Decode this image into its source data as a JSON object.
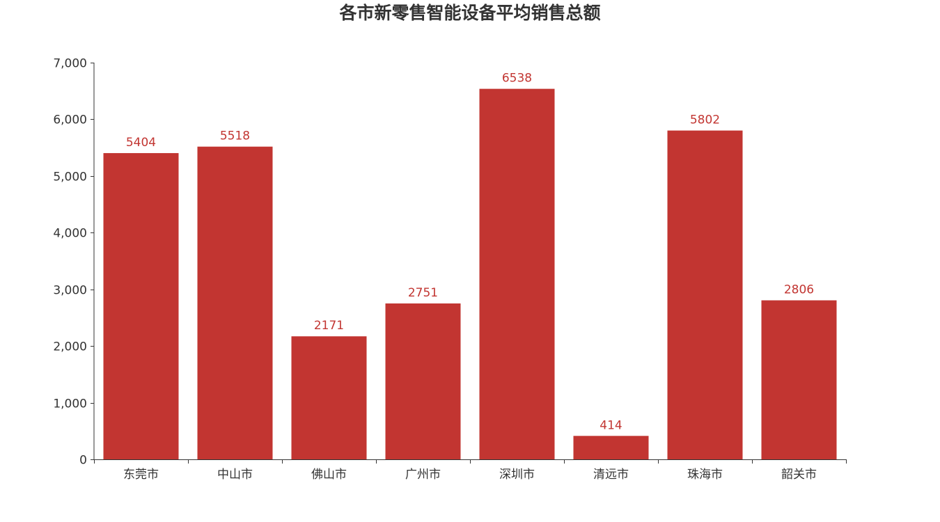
{
  "chart_data": {
    "type": "bar",
    "title": "各市新零售智能设备平均销售总额",
    "xlabel": "",
    "ylabel": "",
    "categories": [
      "东莞市",
      "中山市",
      "佛山市",
      "广州市",
      "深圳市",
      "清远市",
      "珠海市",
      "韶关市"
    ],
    "values": [
      5404,
      5518,
      2171,
      2751,
      6538,
      414,
      5802,
      2806
    ],
    "ylim": [
      0,
      7000
    ],
    "yticks": [
      0,
      1000,
      2000,
      3000,
      4000,
      5000,
      6000,
      7000
    ],
    "ytick_labels": [
      "0",
      "1,000",
      "2,000",
      "3,000",
      "4,000",
      "5,000",
      "6,000",
      "7,000"
    ],
    "data_labels_shown": true,
    "grid": false,
    "legend": "none",
    "colors": {
      "bar": "#c23531",
      "data_label": "#c23531",
      "axis": "#333333",
      "text": "#333333"
    }
  }
}
